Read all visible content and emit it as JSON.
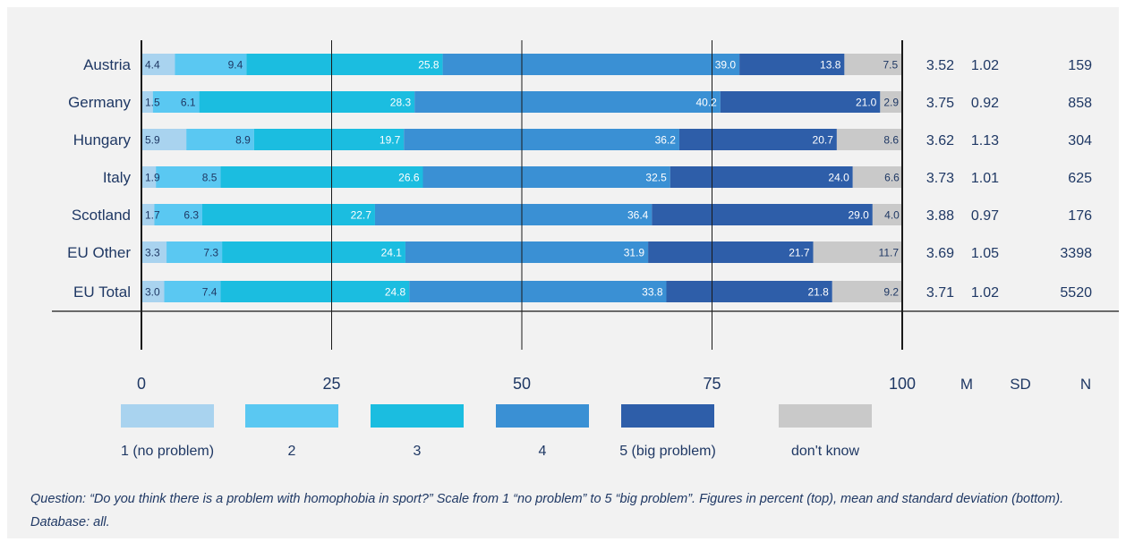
{
  "chart_data": {
    "type": "bar",
    "orientation": "horizontal",
    "stacked": true,
    "xlim": [
      0,
      100
    ],
    "x_ticks": [
      0,
      25,
      50,
      75,
      100
    ],
    "categories": [
      "Austria",
      "Germany",
      "Hungary",
      "Italy",
      "Scotland",
      "EU Other",
      "EU Total"
    ],
    "series": [
      {
        "name": "1 (no problem)",
        "color": "#a9d3ef",
        "values": [
          4.4,
          1.5,
          5.9,
          1.9,
          1.7,
          3.3,
          3.0
        ]
      },
      {
        "name": "2",
        "color": "#5ac8f2",
        "values": [
          9.4,
          6.1,
          8.9,
          8.5,
          6.3,
          7.3,
          7.4
        ]
      },
      {
        "name": "3",
        "color": "#1bbde0",
        "values": [
          25.8,
          28.3,
          19.7,
          26.6,
          22.7,
          24.1,
          24.8
        ]
      },
      {
        "name": "4",
        "color": "#3a90d4",
        "values": [
          39.0,
          40.2,
          36.2,
          32.5,
          36.4,
          31.9,
          33.8
        ]
      },
      {
        "name": "5 (big problem)",
        "color": "#2e5ea9",
        "values": [
          13.8,
          21.0,
          20.7,
          24.0,
          29.0,
          21.7,
          21.8
        ]
      },
      {
        "name": "don't know",
        "color": "#c9c9c9",
        "values": [
          7.5,
          2.9,
          8.6,
          6.6,
          4.0,
          11.7,
          9.2
        ]
      }
    ],
    "stats_columns": [
      "M",
      "SD",
      "N"
    ],
    "stats": {
      "M": [
        "3.52",
        "3.75",
        "3.62",
        "3.73",
        "3.88",
        "3.69",
        "3.71"
      ],
      "SD": [
        "1.02",
        "0.92",
        "1.13",
        "1.01",
        "0.97",
        "1.05",
        "1.02"
      ],
      "N": [
        "159",
        "858",
        "304",
        "625",
        "176",
        "3398",
        "5520"
      ]
    },
    "legend_position": "bottom",
    "grid": true
  },
  "footnote": "Question: “Do you think there is a problem with homophobia in sport?” Scale from 1 “no problem” to 5 “big problem”. Figures in percent (top), mean and standard deviation (bottom). Database: all."
}
